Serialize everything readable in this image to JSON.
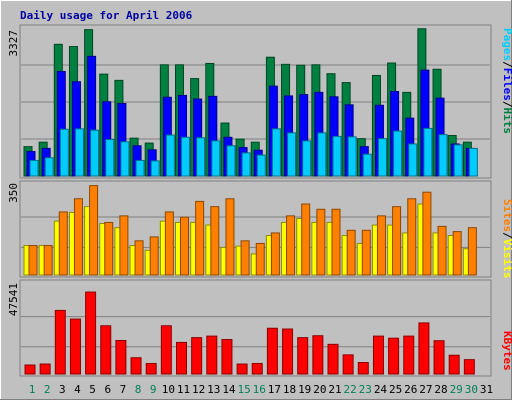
{
  "chart_data": [
    {
      "type": "bar",
      "title": "Daily usage for April 2006",
      "panel": "hits",
      "ytick_label": "3327",
      "ylim": [
        0,
        3327
      ],
      "categories": [
        "1",
        "2",
        "3",
        "4",
        "5",
        "6",
        "7",
        "8",
        "9",
        "10",
        "11",
        "12",
        "13",
        "14",
        "15",
        "16",
        "17",
        "18",
        "19",
        "20",
        "21",
        "22",
        "23",
        "24",
        "25",
        "26",
        "27",
        "28",
        "29",
        "30",
        "31"
      ],
      "weekend_days": [
        "1",
        "2",
        "8",
        "9",
        "15",
        "16",
        "22",
        "23",
        "29",
        "30"
      ],
      "legend": [
        "Pages",
        "Files",
        "Hits"
      ],
      "colors": {
        "Pages": "#00ccff",
        "Files": "#0000ff",
        "Hits": "#008040"
      },
      "series": [
        {
          "name": "Hits",
          "values": [
            660,
            760,
            2960,
            2910,
            3290,
            2290,
            2150,
            850,
            740,
            2500,
            2500,
            2190,
            2530,
            1190,
            830,
            760,
            2670,
            2510,
            2490,
            2500,
            2300,
            2100,
            840,
            2260,
            2540,
            1880,
            3310,
            2400,
            910,
            760,
            0
          ]
        },
        {
          "name": "Files",
          "values": [
            550,
            620,
            2350,
            2120,
            2690,
            1670,
            1630,
            680,
            590,
            1770,
            1810,
            1730,
            1790,
            870,
            640,
            580,
            2020,
            1800,
            1830,
            1880,
            1780,
            1600,
            660,
            1590,
            1900,
            1300,
            2380,
            1750,
            720,
            620,
            0
          ]
        },
        {
          "name": "Pages",
          "values": [
            350,
            410,
            1050,
            1060,
            1030,
            820,
            770,
            350,
            340,
            920,
            870,
            860,
            790,
            680,
            520,
            470,
            1060,
            970,
            790,
            970,
            890,
            880,
            490,
            840,
            1010,
            720,
            1070,
            930,
            700,
            620,
            0
          ]
        }
      ]
    },
    {
      "type": "bar",
      "panel": "visits",
      "ytick_label": "350",
      "ylim": [
        0,
        350
      ],
      "legend": [
        "Sites",
        "Visits"
      ],
      "colors": {
        "Sites": "#ff8000",
        "Visits": "#ffff00"
      },
      "series": [
        {
          "name": "Visits",
          "values": [
            112,
            112,
            205,
            238,
            260,
            196,
            180,
            112,
            94,
            205,
            200,
            200,
            190,
            105,
            110,
            80,
            150,
            200,
            215,
            200,
            200,
            150,
            120,
            190,
            190,
            160,
            270,
            160,
            150,
            100,
            0
          ]
        },
        {
          "name": "Sites",
          "values": [
            112,
            112,
            240,
            290,
            340,
            200,
            225,
            130,
            145,
            240,
            220,
            280,
            260,
            290,
            130,
            120,
            160,
            225,
            270,
            250,
            250,
            170,
            170,
            225,
            260,
            290,
            315,
            185,
            165,
            180,
            0
          ]
        }
      ]
    },
    {
      "type": "bar",
      "panel": "kbytes",
      "ytick_label": "47541",
      "ylim": [
        0,
        47541
      ],
      "legend": [
        "KBytes"
      ],
      "colors": {
        "KBytes": "#ff0000"
      },
      "series": [
        {
          "name": "KBytes",
          "values": [
            4700,
            5200,
            33200,
            28700,
            42800,
            25200,
            17500,
            8500,
            5500,
            25200,
            16500,
            19000,
            19800,
            18000,
            5200,
            5500,
            23900,
            23500,
            19000,
            20000,
            15500,
            10000,
            6000,
            19800,
            18700,
            19800,
            26700,
            17400,
            9800,
            7500,
            0
          ]
        }
      ]
    }
  ]
}
